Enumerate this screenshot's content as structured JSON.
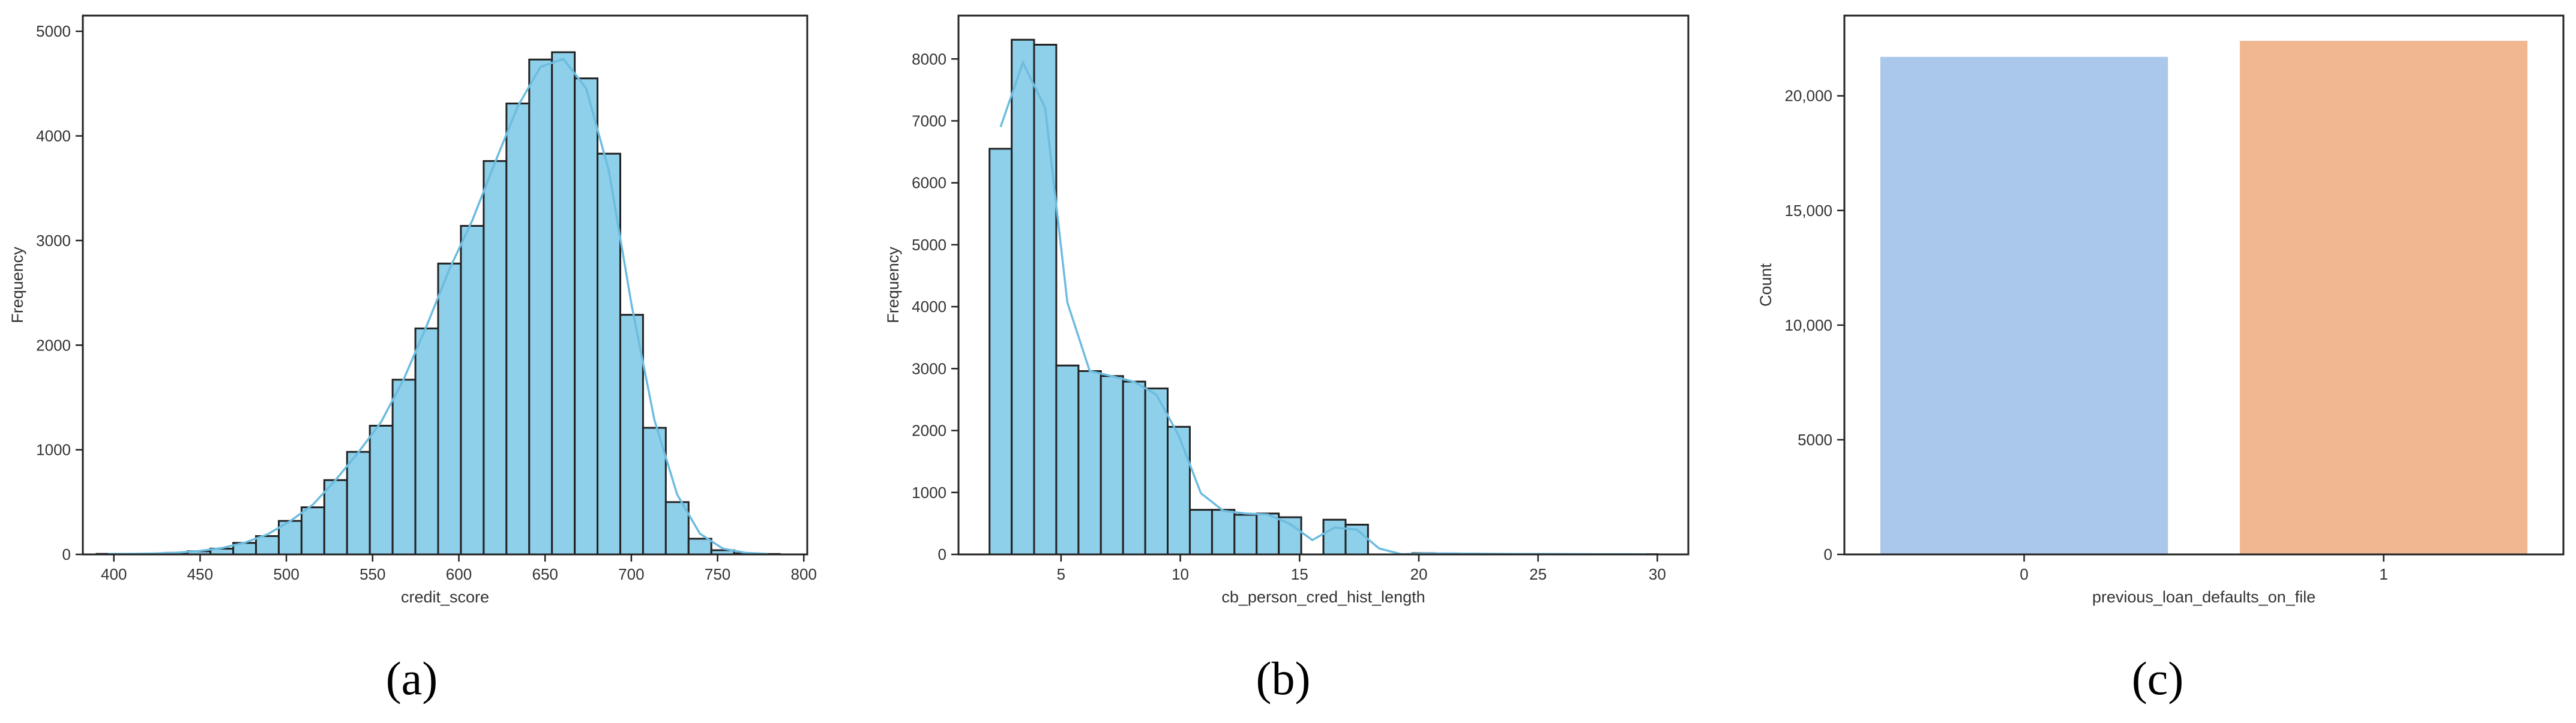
{
  "chart_data": [
    {
      "type": "bar",
      "subtype": "histogram",
      "panel_label": "(a)",
      "xlabel": "credit_score",
      "ylabel": "Frequency",
      "xlim": [
        382,
        802
      ],
      "ylim": [
        0,
        5150
      ],
      "xticks": [
        400,
        450,
        500,
        550,
        600,
        650,
        700,
        750,
        800
      ],
      "yticks": [
        0,
        1000,
        2000,
        3000,
        4000,
        5000
      ],
      "bar_color": "#8ecfe9",
      "edge_color": "#222222",
      "kde_color": "#6cbcdf",
      "kde": true,
      "grid": false,
      "bins": [
        {
          "x0": 390.0,
          "x1": 403.2,
          "count": 5
        },
        {
          "x0": 403.2,
          "x1": 416.4,
          "count": 5
        },
        {
          "x0": 416.4,
          "x1": 429.6,
          "count": 8
        },
        {
          "x0": 429.6,
          "x1": 442.8,
          "count": 15
        },
        {
          "x0": 442.8,
          "x1": 456.0,
          "count": 30
        },
        {
          "x0": 456.0,
          "x1": 469.2,
          "count": 55
        },
        {
          "x0": 469.2,
          "x1": 482.4,
          "count": 110
        },
        {
          "x0": 482.4,
          "x1": 495.6,
          "count": 175
        },
        {
          "x0": 495.6,
          "x1": 508.8,
          "count": 320
        },
        {
          "x0": 508.8,
          "x1": 522.0,
          "count": 450
        },
        {
          "x0": 522.0,
          "x1": 535.2,
          "count": 710
        },
        {
          "x0": 535.2,
          "x1": 548.4,
          "count": 980
        },
        {
          "x0": 548.4,
          "x1": 561.6,
          "count": 1230
        },
        {
          "x0": 561.6,
          "x1": 574.8,
          "count": 1670
        },
        {
          "x0": 574.8,
          "x1": 588.0,
          "count": 2160
        },
        {
          "x0": 588.0,
          "x1": 601.2,
          "count": 2780
        },
        {
          "x0": 601.2,
          "x1": 614.4,
          "count": 3140
        },
        {
          "x0": 614.4,
          "x1": 627.6,
          "count": 3760
        },
        {
          "x0": 627.6,
          "x1": 640.8,
          "count": 4310
        },
        {
          "x0": 640.8,
          "x1": 654.0,
          "count": 4730
        },
        {
          "x0": 654.0,
          "x1": 667.2,
          "count": 4800
        },
        {
          "x0": 667.2,
          "x1": 680.4,
          "count": 4550
        },
        {
          "x0": 680.4,
          "x1": 693.6,
          "count": 3830
        },
        {
          "x0": 693.6,
          "x1": 706.8,
          "count": 2290
        },
        {
          "x0": 706.8,
          "x1": 720.0,
          "count": 1210
        },
        {
          "x0": 720.0,
          "x1": 733.2,
          "count": 500
        },
        {
          "x0": 733.2,
          "x1": 746.4,
          "count": 150
        },
        {
          "x0": 746.4,
          "x1": 759.6,
          "count": 40
        },
        {
          "x0": 759.6,
          "x1": 772.8,
          "count": 10
        },
        {
          "x0": 772.8,
          "x1": 786.0,
          "count": 4
        }
      ]
    },
    {
      "type": "bar",
      "subtype": "histogram",
      "panel_label": "(b)",
      "xlabel": "cb_person_cred_hist_length",
      "ylabel": "Frequency",
      "xlim": [
        0.7,
        31.3
      ],
      "ylim": [
        0,
        8700
      ],
      "xticks": [
        5,
        10,
        15,
        20,
        25,
        30
      ],
      "yticks": [
        0,
        1000,
        2000,
        3000,
        4000,
        5000,
        6000,
        7000,
        8000
      ],
      "bar_color": "#8ecfe9",
      "edge_color": "#222222",
      "kde_color": "#6cbcdf",
      "kde": true,
      "grid": false,
      "bins": [
        {
          "x0": 2.0,
          "x1": 2.93,
          "count": 6550
        },
        {
          "x0": 2.93,
          "x1": 3.87,
          "count": 8310
        },
        {
          "x0": 3.87,
          "x1": 4.8,
          "count": 8230
        },
        {
          "x0": 4.8,
          "x1": 5.73,
          "count": 3050
        },
        {
          "x0": 5.73,
          "x1": 6.67,
          "count": 2960
        },
        {
          "x0": 6.67,
          "x1": 7.6,
          "count": 2880
        },
        {
          "x0": 7.6,
          "x1": 8.53,
          "count": 2790
        },
        {
          "x0": 8.53,
          "x1": 9.47,
          "count": 2680
        },
        {
          "x0": 9.47,
          "x1": 10.4,
          "count": 2060
        },
        {
          "x0": 10.4,
          "x1": 11.33,
          "count": 720
        },
        {
          "x0": 11.33,
          "x1": 12.27,
          "count": 720
        },
        {
          "x0": 12.27,
          "x1": 13.2,
          "count": 640
        },
        {
          "x0": 13.2,
          "x1": 14.13,
          "count": 660
        },
        {
          "x0": 14.13,
          "x1": 15.07,
          "count": 600
        },
        {
          "x0": 15.07,
          "x1": 16.0,
          "count": 0
        },
        {
          "x0": 16.0,
          "x1": 16.93,
          "count": 560
        },
        {
          "x0": 16.93,
          "x1": 17.87,
          "count": 480
        },
        {
          "x0": 17.87,
          "x1": 18.8,
          "count": 0
        },
        {
          "x0": 18.8,
          "x1": 19.73,
          "count": 0
        },
        {
          "x0": 19.73,
          "x1": 20.67,
          "count": 20
        },
        {
          "x0": 20.67,
          "x1": 21.6,
          "count": 15
        },
        {
          "x0": 21.6,
          "x1": 22.53,
          "count": 12
        },
        {
          "x0": 22.53,
          "x1": 23.47,
          "count": 10
        },
        {
          "x0": 23.47,
          "x1": 24.4,
          "count": 8
        },
        {
          "x0": 24.4,
          "x1": 25.33,
          "count": 7
        },
        {
          "x0": 25.33,
          "x1": 26.27,
          "count": 6
        },
        {
          "x0": 26.27,
          "x1": 27.2,
          "count": 5
        },
        {
          "x0": 27.2,
          "x1": 28.13,
          "count": 4
        },
        {
          "x0": 28.13,
          "x1": 29.07,
          "count": 4
        },
        {
          "x0": 29.07,
          "x1": 30.0,
          "count": 3
        }
      ]
    },
    {
      "type": "bar",
      "panel_label": "(c)",
      "xlabel": "previous_loan_defaults_on_file",
      "ylabel": "Count",
      "categories": [
        "0",
        "1"
      ],
      "values": [
        21700,
        22400
      ],
      "colors": [
        "#a9c8ec",
        "#f0b790"
      ],
      "ylim": [
        0,
        23500
      ],
      "yticks": [
        0,
        5000,
        10000,
        15000,
        20000
      ],
      "ytick_labels": [
        "0",
        "5000",
        "10,000",
        "15,000",
        "20,000"
      ],
      "grid": false
    }
  ]
}
